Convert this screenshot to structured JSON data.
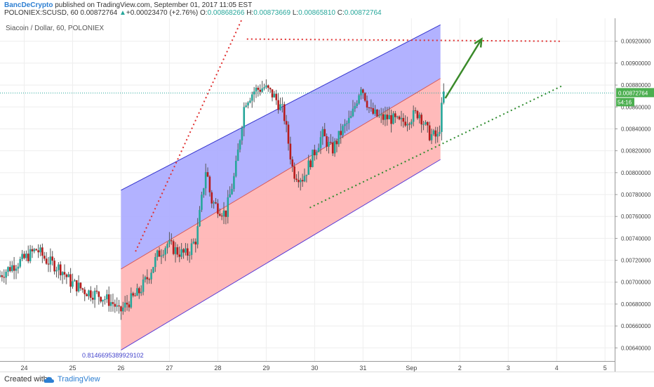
{
  "header": {
    "author": "BancDeCrypto",
    "published": "published on TradingView.com, September 01, 2017 11:05 EST",
    "symbol": "POLONIEX:SCUSD, 60",
    "last": "0.00872764",
    "change_arrow": "▲",
    "change": "+0.00023470 (+2.76%)",
    "ohlc": {
      "o_label": "O:",
      "o": "0.00868266",
      "h_label": "H:",
      "h": "0.00873669",
      "l_label": "L:",
      "l": "0.00865810",
      "c_label": "C:",
      "c": "0.00872764"
    }
  },
  "footer": {
    "created_with": "Created with",
    "brand": "TradingView",
    "icon": "tradingview-cloud-icon"
  },
  "colors": {
    "up_candle": "#26a69a",
    "down_candle": "#b71c1c",
    "wick": "#555555",
    "channel_upper_fill": "#aaaaff",
    "channel_lower_fill": "#ffb3b3",
    "channel_upper_line": "#3333cc",
    "channel_lower_line": "#5a3bd6",
    "channel_mid_line": "#d65a5a",
    "red_dotted": "#e03030",
    "green_dotted": "#2e8b2e",
    "arrow": "#3a8a2a",
    "price_label_bg": "#4caf50"
  },
  "chart_data": {
    "type": "candlestick",
    "title": "Siacoin / Dollar, 60, POLONIEX",
    "x_ticks": [
      "24",
      "25",
      "26",
      "27",
      "28",
      "29",
      "30",
      "31",
      "Sep",
      "2",
      "3",
      "4",
      "5"
    ],
    "y_ticks": [
      "0.00640000",
      "0.00660000",
      "0.00680000",
      "0.00700000",
      "0.00720000",
      "0.00740000",
      "0.00760000",
      "0.00780000",
      "0.00800000",
      "0.00820000",
      "0.00840000",
      "0.00860000",
      "0.00880000",
      "0.00900000",
      "0.00920000"
    ],
    "ylim": [
      0.00628,
      0.00941
    ],
    "xlim": [
      23.5,
      36.2
    ],
    "current_price_label": "0.00872764",
    "countdown_label": "54:16",
    "channel_annotation": "0.8146695389929102",
    "price_path": [
      [
        23.5,
        0.00705
      ],
      [
        23.8,
        0.00715
      ],
      [
        24.0,
        0.0072
      ],
      [
        24.3,
        0.0073
      ],
      [
        24.5,
        0.0072
      ],
      [
        24.8,
        0.00712
      ],
      [
        25.0,
        0.007
      ],
      [
        25.3,
        0.00692
      ],
      [
        25.6,
        0.00688
      ],
      [
        25.9,
        0.0068
      ],
      [
        26.0,
        0.00672
      ],
      [
        26.2,
        0.00682
      ],
      [
        26.4,
        0.0069
      ],
      [
        26.6,
        0.00705
      ],
      [
        26.8,
        0.00725
      ],
      [
        27.0,
        0.00735
      ],
      [
        27.2,
        0.00728
      ],
      [
        27.4,
        0.00725
      ],
      [
        27.6,
        0.0074
      ],
      [
        27.8,
        0.00805
      ],
      [
        27.9,
        0.00775
      ],
      [
        28.0,
        0.0077
      ],
      [
        28.2,
        0.00762
      ],
      [
        28.4,
        0.008
      ],
      [
        28.6,
        0.00865
      ],
      [
        28.8,
        0.00875
      ],
      [
        29.0,
        0.00878
      ],
      [
        29.2,
        0.0087
      ],
      [
        29.4,
        0.00855
      ],
      [
        29.6,
        0.008
      ],
      [
        29.8,
        0.00795
      ],
      [
        30.0,
        0.00815
      ],
      [
        30.2,
        0.00835
      ],
      [
        30.4,
        0.0082
      ],
      [
        30.6,
        0.00838
      ],
      [
        30.8,
        0.0085
      ],
      [
        30.9,
        0.00865
      ],
      [
        31.0,
        0.0088
      ],
      [
        31.2,
        0.00855
      ],
      [
        31.4,
        0.0085
      ],
      [
        31.6,
        0.0085
      ],
      [
        31.8,
        0.00845
      ],
      [
        32.0,
        0.0085
      ],
      [
        32.2,
        0.00855
      ],
      [
        32.4,
        0.00835
      ],
      [
        32.6,
        0.00832
      ],
      [
        32.7,
        0.00872
      ]
    ],
    "channel": {
      "start": {
        "x": 26.0,
        "top": 0.00784,
        "mid": 0.00712,
        "bottom": 0.00638
      },
      "end": {
        "x": 32.6,
        "top": 0.00935,
        "mid": 0.00886,
        "bottom": 0.00812
      }
    },
    "red_dotted_up": [
      [
        26.3,
        0.00728
      ],
      [
        28.6,
        0.0095
      ]
    ],
    "red_dotted_horizontal": [
      [
        28.6,
        0.00922
      ],
      [
        35.1,
        0.0092
      ]
    ],
    "green_dotted_support": [
      [
        29.9,
        0.00768
      ],
      [
        35.1,
        0.00879
      ]
    ],
    "green_arrow": [
      [
        32.7,
        0.00868
      ],
      [
        33.45,
        0.00922
      ]
    ]
  }
}
